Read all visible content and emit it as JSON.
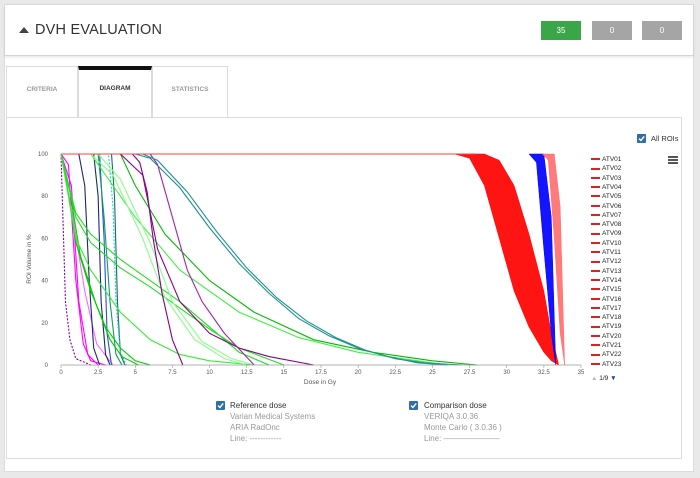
{
  "header": {
    "title": "DVH EVALUATION",
    "badges": [
      {
        "label": "35",
        "color": "#3aa648"
      },
      {
        "label": "0",
        "color": "#a5a5a5"
      },
      {
        "label": "0",
        "color": "#a5a5a5"
      }
    ]
  },
  "tabs": [
    {
      "label": "CRITERIA",
      "active": false
    },
    {
      "label": "DIAGRAM",
      "active": true
    },
    {
      "label": "STATISTICS",
      "active": false
    }
  ],
  "controls": {
    "all_rois_label": "All ROIs",
    "all_rois_checked": true,
    "menu_icon": "hamburger-icon"
  },
  "legend": {
    "items": [
      "ATV01",
      "ATV02",
      "ATV03",
      "ATV04",
      "ATV05",
      "ATV06",
      "ATV07",
      "ATV08",
      "ATV09",
      "ATV10",
      "ATV11",
      "ATV12",
      "ATV13",
      "ATV14",
      "ATV15",
      "ATV16",
      "ATV17",
      "ATV18",
      "ATV19",
      "ATV20",
      "ATV21",
      "ATV22",
      "ATV23"
    ],
    "pager": "1/9"
  },
  "reference": {
    "checked": true,
    "label": "Reference dose",
    "line1": "Varian Medical Systems",
    "line2": "ARIA RadOnc",
    "line3": "Line: ------------"
  },
  "comparison": {
    "checked": true,
    "label": "Comparison dose",
    "line1": "VERIQA 3.0.36",
    "line2": "Monte Carlo ( 3.0.36 )",
    "line3": "Line: ———————"
  },
  "chart_data": {
    "type": "line",
    "xlabel": "Dose in Gy",
    "ylabel": "ROI Volume in %",
    "xlim": [
      0,
      35
    ],
    "ylim": [
      0,
      100
    ],
    "xticks": [
      "0",
      "2.5",
      "5",
      "7.5",
      "10",
      "12.5",
      "15",
      "17.5",
      "20",
      "22.5",
      "25",
      "27.5",
      "30",
      "32.5",
      "35"
    ],
    "yticks": [
      "0",
      "20",
      "40",
      "60",
      "80",
      "100"
    ],
    "grid": false,
    "legend_position": "right",
    "series": [
      {
        "color": "#ff00ff",
        "x": [
          0,
          0.5,
          1,
          1.5,
          2,
          3
        ],
        "y": [
          100,
          95,
          40,
          10,
          2,
          0
        ]
      },
      {
        "color": "#ff00ff",
        "x": [
          0,
          0.7,
          1.2,
          1.8,
          2.5
        ],
        "y": [
          100,
          85,
          30,
          5,
          0
        ]
      },
      {
        "color": "#8800aa",
        "dashed": true,
        "x": [
          0,
          0.3,
          0.6,
          1,
          2
        ],
        "y": [
          100,
          30,
          12,
          3,
          0
        ]
      },
      {
        "color": "#ff66ff",
        "x": [
          0,
          0.8,
          1.6,
          2.4,
          3.5
        ],
        "y": [
          100,
          70,
          35,
          10,
          0
        ]
      },
      {
        "color": "#1a2a6b",
        "x": [
          0,
          1.2,
          1.6,
          1.9,
          2.2,
          2.6
        ],
        "y": [
          100,
          100,
          85,
          40,
          8,
          0
        ]
      },
      {
        "color": "#1a2a6b",
        "x": [
          0,
          2.2,
          2.5,
          2.7,
          3,
          3.3
        ],
        "y": [
          100,
          100,
          80,
          30,
          5,
          0
        ]
      },
      {
        "color": "#1a6a6a",
        "x": [
          0,
          3.4,
          3.6,
          3.8,
          4,
          4.3
        ],
        "y": [
          100,
          100,
          80,
          30,
          5,
          0
        ]
      },
      {
        "color": "#2255cc",
        "x": [
          0,
          2.6,
          2.9,
          3.1,
          3.4
        ],
        "y": [
          100,
          100,
          60,
          15,
          0
        ]
      },
      {
        "color": "#22cccc",
        "dashed": true,
        "x": [
          0,
          3.2,
          3.5,
          3.7,
          4,
          4.4
        ],
        "y": [
          100,
          100,
          75,
          30,
          6,
          0
        ]
      },
      {
        "color": "#119966",
        "x": [
          0,
          2.5,
          2.9,
          3.3,
          3.7,
          4.1
        ],
        "y": [
          100,
          100,
          70,
          30,
          5,
          0
        ]
      },
      {
        "color": "#00cc00",
        "x": [
          0,
          0.4,
          1,
          2,
          3,
          4,
          5,
          6
        ],
        "y": [
          100,
          85,
          58,
          35,
          18,
          8,
          2,
          0
        ]
      },
      {
        "color": "#00cc00",
        "x": [
          0,
          0.6,
          1.3,
          2.4,
          3.3,
          4.1,
          5.2
        ],
        "y": [
          100,
          82,
          52,
          28,
          12,
          4,
          0
        ]
      },
      {
        "color": "#22dd22",
        "x": [
          0,
          1,
          2,
          4,
          6,
          8,
          10,
          12,
          14
        ],
        "y": [
          100,
          72,
          62,
          50,
          40,
          30,
          18,
          6,
          0
        ]
      },
      {
        "color": "#22dd22",
        "x": [
          0,
          1,
          2,
          4,
          6,
          8,
          10,
          12,
          15
        ],
        "y": [
          100,
          70,
          58,
          46,
          37,
          27,
          17,
          8,
          0
        ]
      },
      {
        "color": "#33ee33",
        "x": [
          0,
          1,
          2,
          3,
          4,
          6,
          8,
          10,
          13
        ],
        "y": [
          100,
          60,
          45,
          35,
          25,
          12,
          5,
          2,
          0
        ]
      },
      {
        "color": "#44ee44",
        "x": [
          2,
          3,
          5,
          8,
          12,
          16,
          20,
          24,
          26
        ],
        "y": [
          100,
          90,
          70,
          45,
          25,
          13,
          6,
          2,
          0
        ]
      },
      {
        "color": "#88ff88",
        "x": [
          2,
          3.5,
          5.5,
          7,
          9,
          11,
          12.5
        ],
        "y": [
          100,
          90,
          60,
          32,
          12,
          3,
          0
        ]
      },
      {
        "color": "#88ff88",
        "x": [
          2.5,
          4,
          6,
          7.5,
          9.5,
          11.5,
          13
        ],
        "y": [
          100,
          88,
          58,
          30,
          11,
          3,
          0
        ]
      },
      {
        "color": "#00bb00",
        "x": [
          4,
          5,
          7,
          10,
          13,
          17,
          21,
          25,
          28
        ],
        "y": [
          100,
          85,
          62,
          40,
          25,
          12,
          6,
          2,
          0
        ]
      },
      {
        "color": "#880088",
        "x": [
          4.8,
          5.3,
          5.8,
          6.2,
          6.8,
          7.5,
          8.2
        ],
        "y": [
          100,
          96,
          82,
          60,
          34,
          12,
          0
        ]
      },
      {
        "color": "#880088",
        "x": [
          4,
          5.5,
          6.5,
          8,
          10,
          12,
          14,
          17
        ],
        "y": [
          100,
          90,
          55,
          30,
          15,
          8,
          4,
          0
        ]
      },
      {
        "color": "#aa22aa",
        "x": [
          6,
          6.5,
          7.5,
          8.5,
          9.5,
          11,
          13
        ],
        "y": [
          100,
          95,
          70,
          45,
          30,
          15,
          0
        ]
      },
      {
        "color": "#1e9090",
        "x": [
          3.5,
          5,
          6,
          8,
          10,
          12,
          14,
          16,
          18,
          20,
          22,
          24,
          26
        ],
        "y": [
          100,
          100,
          98,
          84,
          65,
          48,
          34,
          22,
          14,
          8,
          4,
          1,
          0
        ]
      },
      {
        "color": "#1e9090",
        "x": [
          4,
          5.5,
          6.5,
          8.5,
          10.5,
          12.5,
          14.5,
          16.5,
          18.5,
          20.5,
          22.5,
          24.5,
          27
        ],
        "y": [
          100,
          100,
          97,
          82,
          63,
          46,
          32,
          21,
          13,
          7,
          3,
          1,
          0
        ]
      },
      {
        "color": "#ff0000",
        "band": true,
        "x": [
          26.5,
          27.5,
          28.5,
          29.5,
          30.5,
          31.5,
          32.5,
          33,
          33.5
        ],
        "ylow": [
          100,
          98,
          85,
          60,
          35,
          18,
          6,
          2,
          0
        ],
        "yhigh": [
          100,
          100,
          100,
          97,
          85,
          62,
          35,
          15,
          0
        ]
      },
      {
        "color": "#0000ff",
        "band": true,
        "x": [
          31.5,
          32,
          32.5,
          33,
          33.3
        ],
        "ylow": [
          100,
          96,
          55,
          15,
          0
        ],
        "yhigh": [
          100,
          100,
          100,
          70,
          0
        ]
      },
      {
        "color": "#ff7070",
        "band": true,
        "x": [
          32.4,
          32.8,
          33.2,
          33.6,
          33.9
        ],
        "ylow": [
          100,
          97,
          60,
          15,
          0
        ],
        "yhigh": [
          100,
          100,
          100,
          75,
          0
        ]
      },
      {
        "color": "#ff4040",
        "x": [
          0,
          27,
          28
        ],
        "y": [
          100,
          100,
          100
        ]
      }
    ]
  }
}
